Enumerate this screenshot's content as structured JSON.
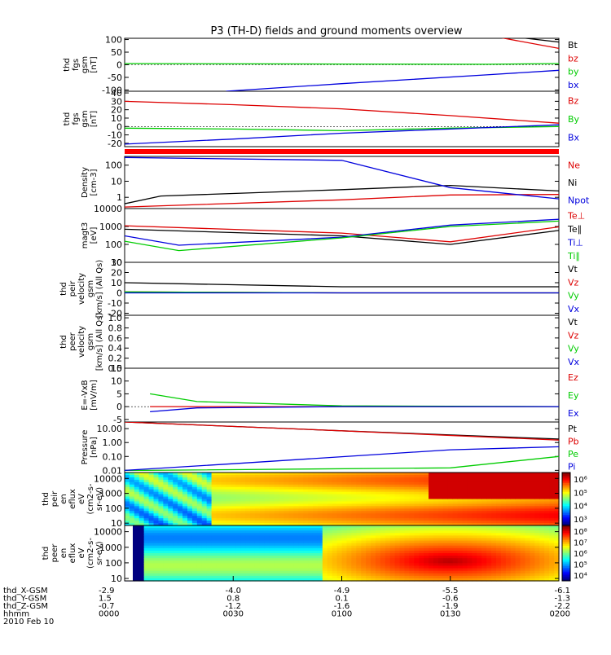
{
  "title": "P3 (TH-D) fields and ground moments overview",
  "panels": [
    {
      "ylabel_lines": [
        "thd",
        "fgs",
        "gsm",
        "[nT]"
      ],
      "ticks": [
        100,
        50,
        0,
        -50,
        -100
      ],
      "ylim": [
        -105,
        105
      ],
      "scale": "linear",
      "legend": [
        {
          "label": "Bt",
          "color": "#000000"
        },
        {
          "label": "bz",
          "color": "#dd0000"
        },
        {
          "label": "by",
          "color": "#00cc00"
        },
        {
          "label": "bx",
          "color": "#0000dd"
        }
      ]
    },
    {
      "ylabel_lines": [
        "thd",
        "fgs",
        "gsm",
        "[nT]"
      ],
      "ticks": [
        40,
        30,
        20,
        10,
        0,
        -10,
        -20
      ],
      "ylim": [
        -24,
        42
      ],
      "scale": "linear",
      "legend": [
        {
          "label": "Bz",
          "color": "#dd0000"
        },
        {
          "label": "By",
          "color": "#00cc00"
        },
        {
          "label": "Bx",
          "color": "#0000dd"
        }
      ]
    },
    {
      "ylabel_lines": [
        "Density",
        "[cm-3]"
      ],
      "ticks": [
        100,
        10,
        1
      ],
      "tick_labels": [
        "100",
        "10",
        "1"
      ],
      "ylim": [
        0.2,
        350
      ],
      "scale": "log",
      "legend": [
        {
          "label": "Ne",
          "color": "#dd0000"
        },
        {
          "label": "Ni",
          "color": "#000000"
        },
        {
          "label": "Npot",
          "color": "#0000dd"
        }
      ]
    },
    {
      "ylabel_lines": [
        "magt3",
        "[eV]"
      ],
      "ticks": [
        10000,
        1000,
        100,
        10
      ],
      "tick_labels": [
        "10000",
        "1000",
        "100",
        "10"
      ],
      "ylim": [
        10,
        10000
      ],
      "scale": "log",
      "legend": [
        {
          "label": "Te⊥",
          "color": "#dd0000"
        },
        {
          "label": "Te∥",
          "color": "#000000"
        },
        {
          "label": "Ti⊥",
          "color": "#0000dd"
        },
        {
          "label": "Ti∥",
          "color": "#00cc00"
        }
      ]
    },
    {
      "ylabel_lines": [
        "thd",
        "peir",
        "velocity",
        "gsm",
        "[km/s] (All Qs)"
      ],
      "ticks": [
        30,
        20,
        10,
        0,
        -10,
        -20
      ],
      "ylim": [
        -22,
        30
      ],
      "scale": "linear",
      "legend": [
        {
          "label": "Vt",
          "color": "#000000"
        },
        {
          "label": "Vz",
          "color": "#dd0000"
        },
        {
          "label": "Vy",
          "color": "#00cc00"
        },
        {
          "label": "Vx",
          "color": "#0000dd"
        }
      ]
    },
    {
      "ylabel_lines": [
        "thd",
        "peer",
        "velocity",
        "gsm",
        "[km/s] (All Qs)"
      ],
      "ticks": [
        1.0,
        0.8,
        0.6,
        0.4,
        0.2,
        0.0
      ],
      "tick_labels": [
        "1.0",
        "0.8",
        "0.6",
        "0.4",
        "0.2",
        "0.0"
      ],
      "ylim": [
        0,
        1.05
      ],
      "scale": "linear",
      "legend": [
        {
          "label": "Vt",
          "color": "#000000"
        },
        {
          "label": "Vz",
          "color": "#dd0000"
        },
        {
          "label": "Vy",
          "color": "#00cc00"
        },
        {
          "label": "Vx",
          "color": "#0000dd"
        }
      ]
    },
    {
      "ylabel_lines": [
        "E=-VxB",
        "[mV/m]"
      ],
      "ticks": [
        15,
        10,
        5,
        0,
        -5
      ],
      "ylim": [
        -6,
        15
      ],
      "scale": "linear",
      "legend": [
        {
          "label": "Ez",
          "color": "#dd0000"
        },
        {
          "label": "Ey",
          "color": "#00cc00"
        },
        {
          "label": "Ex",
          "color": "#0000dd"
        }
      ]
    },
    {
      "ylabel_lines": [
        "Pressure",
        "[nPa]"
      ],
      "ticks": [
        10,
        1,
        0.1,
        0.01
      ],
      "tick_labels": [
        "10.00",
        "1.00",
        "0.10",
        "0.01"
      ],
      "ylim": [
        0.007,
        30
      ],
      "scale": "log",
      "legend": [
        {
          "label": "Pt",
          "color": "#000000"
        },
        {
          "label": "Pb",
          "color": "#dd0000"
        },
        {
          "label": "Pe",
          "color": "#00cc00"
        },
        {
          "label": "Pi",
          "color": "#0000dd"
        }
      ]
    },
    {
      "ylabel_lines": [
        "thd",
        "peir",
        "en",
        "eflux",
        "eV",
        "(cm2-s-",
        "sr-eV)"
      ],
      "ticks": [
        10000,
        1000,
        100,
        10
      ],
      "tick_labels": [
        "10000",
        "1000",
        "100",
        "10"
      ],
      "ylim": [
        7,
        25000
      ],
      "scale": "log",
      "colorbar_labels": [
        "10⁶",
        "10⁵",
        "10⁴",
        "10³"
      ]
    },
    {
      "ylabel_lines": [
        "thd",
        "peer",
        "en",
        "eflux",
        "eV",
        "(cm2-s-",
        "sr-eV)"
      ],
      "ticks": [
        10000,
        1000,
        100,
        10
      ],
      "tick_labels": [
        "10000",
        "1000",
        "100",
        "10"
      ],
      "ylim": [
        7,
        25000
      ],
      "scale": "log",
      "colorbar_labels": [
        "10⁸",
        "10⁷",
        "10⁶",
        "10⁵",
        "10⁴"
      ]
    }
  ],
  "chart_data": {
    "type": "line",
    "x": [
      "0000",
      "0030",
      "0100",
      "0130",
      "0200"
    ],
    "xlabel": "hhmm",
    "date": "2010 Feb 10",
    "xlim": [
      0,
      120
    ],
    "series": [
      {
        "panel": 0,
        "name": "Bt",
        "x": [
          0,
          60,
          100,
          120
        ],
        "y": [
          260,
          195,
          123,
          90
        ]
      },
      {
        "panel": 0,
        "name": "bz",
        "x": [
          0,
          60,
          100,
          120
        ],
        "y": [
          255,
          190,
          118,
          65
        ]
      },
      {
        "panel": 0,
        "name": "by",
        "x": [
          0,
          60,
          100,
          120
        ],
        "y": [
          5,
          3,
          2,
          5
        ]
      },
      {
        "panel": 0,
        "name": "bx",
        "x": [
          28,
          60,
          100,
          120
        ],
        "y": [
          -105,
          -75,
          -40,
          -22
        ]
      },
      {
        "panel": 1,
        "name": "Bz",
        "x": [
          0,
          30,
          60,
          90,
          120
        ],
        "y": [
          30,
          26,
          21,
          13,
          4
        ]
      },
      {
        "panel": 1,
        "name": "By",
        "x": [
          0,
          30,
          60,
          90,
          120
        ],
        "y": [
          -2,
          -3,
          -5,
          -2,
          0
        ]
      },
      {
        "panel": 1,
        "name": "Bx",
        "x": [
          0,
          30,
          60,
          90,
          120
        ],
        "y": [
          -21,
          -15,
          -8,
          -3,
          2
        ]
      },
      {
        "panel": 2,
        "name": "Ne",
        "x": [
          0,
          60,
          90,
          120
        ],
        "y": [
          0.25,
          0.7,
          1.4,
          1.5
        ]
      },
      {
        "panel": 2,
        "name": "Ni",
        "x": [
          0,
          10,
          60,
          90,
          120
        ],
        "y": [
          0.4,
          1.2,
          3,
          5.5,
          2.5
        ]
      },
      {
        "panel": 2,
        "name": "Npot",
        "x": [
          0,
          60,
          90,
          120
        ],
        "y": [
          300,
          200,
          4,
          0.8
        ]
      },
      {
        "panel": 3,
        "name": "Te⊥",
        "x": [
          0,
          60,
          90,
          120
        ],
        "y": [
          1100,
          430,
          140,
          950
        ]
      },
      {
        "panel": 3,
        "name": "Te∥",
        "x": [
          0,
          60,
          90,
          120
        ],
        "y": [
          700,
          300,
          100,
          600
        ]
      },
      {
        "panel": 3,
        "name": "Ti⊥",
        "x": [
          0,
          15,
          60,
          90,
          120
        ],
        "y": [
          300,
          90,
          250,
          1200,
          2500
        ]
      },
      {
        "panel": 3,
        "name": "Ti∥",
        "x": [
          0,
          15,
          60,
          90,
          120
        ],
        "y": [
          150,
          45,
          230,
          1000,
          2000
        ]
      },
      {
        "panel": 4,
        "name": "Vt",
        "x": [
          0,
          60,
          120
        ],
        "y": [
          10,
          6,
          6
        ]
      },
      {
        "panel": 4,
        "name": "Vz",
        "x": [
          0,
          60,
          120
        ],
        "y": [
          1,
          0,
          0
        ]
      },
      {
        "panel": 4,
        "name": "Vy",
        "x": [
          0,
          60,
          120
        ],
        "y": [
          1,
          0,
          0
        ]
      },
      {
        "panel": 4,
        "name": "Vx",
        "x": [
          0,
          60,
          120
        ],
        "y": [
          0,
          0,
          0
        ]
      },
      {
        "panel": 6,
        "name": "Ez",
        "x": [
          7,
          60,
          120
        ],
        "y": [
          0,
          0,
          0
        ]
      },
      {
        "panel": 6,
        "name": "Ey",
        "x": [
          7,
          20,
          60,
          120
        ],
        "y": [
          5,
          2,
          0.3,
          0
        ]
      },
      {
        "panel": 6,
        "name": "Ex",
        "x": [
          7,
          20,
          60,
          120
        ],
        "y": [
          -2,
          -0.5,
          0,
          0
        ]
      },
      {
        "panel": 7,
        "name": "Pt",
        "x": [
          0,
          60,
          120
        ],
        "y": [
          30,
          7,
          1.8
        ]
      },
      {
        "panel": 7,
        "name": "Pb",
        "x": [
          0,
          60,
          120
        ],
        "y": [
          30,
          7,
          1.5
        ]
      },
      {
        "panel": 7,
        "name": "Pe",
        "x": [
          0,
          5,
          90,
          120
        ],
        "y": [
          0.01,
          0.01,
          0.015,
          0.1
        ]
      },
      {
        "panel": 7,
        "name": "Pi",
        "x": [
          0,
          30,
          90,
          120
        ],
        "y": [
          0.01,
          0.03,
          0.3,
          0.5
        ]
      }
    ]
  },
  "orbit": {
    "labels": [
      "thd_X-GSM",
      "thd_Y-GSM",
      "thd_Z-GSM",
      "hhmm",
      "2010 Feb 10"
    ],
    "rows": [
      [
        "-2.9",
        "-4.0",
        "-4.9",
        "-5.5",
        "-6.1"
      ],
      [
        "1.5",
        "0.8",
        "0.1",
        "-0.6",
        "-1.3"
      ],
      [
        "-0.7",
        "-1.2",
        "-1.6",
        "-1.9",
        "-2.2"
      ],
      [
        "0000",
        "0030",
        "0100",
        "0130",
        "0200"
      ]
    ]
  }
}
